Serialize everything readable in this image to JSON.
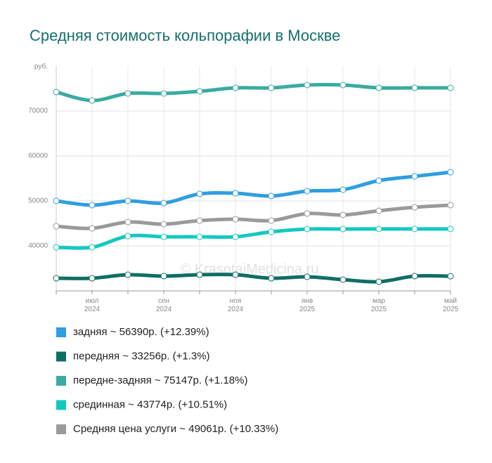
{
  "chart_data": {
    "type": "line",
    "title": "Средняя стоимость кольпорафии в Москве",
    "y_label": "руб.",
    "watermark": "© KrasotaiMedicina.ru",
    "categories": [
      null,
      "июл 2024",
      null,
      "сен 2024",
      null,
      "ноя 2024",
      null,
      "янв 2025",
      null,
      "мар 2025",
      null,
      "май 2025"
    ],
    "ylim": [
      30000,
      80000
    ],
    "yticks": [
      40000,
      50000,
      60000,
      70000
    ],
    "grid": true,
    "series": [
      {
        "name": "задняя ~ 56390р. (+12.39%)",
        "color": "#2f9ee0",
        "values": [
          50000,
          49060,
          50000,
          49530,
          51560,
          51720,
          51090,
          52190,
          52500,
          54530,
          55470,
          56390
        ]
      },
      {
        "name": "передняя ~ 33256р. (+1.3%)",
        "color": "#0f6e64",
        "values": [
          32810,
          32810,
          33590,
          33280,
          33590,
          33590,
          32810,
          33130,
          32500,
          32030,
          33280,
          33256
        ]
      },
      {
        "name": "передне-задняя ~ 75147р. (+1.18%)",
        "color": "#3aaba0",
        "values": [
          74220,
          72340,
          73910,
          73910,
          74380,
          75150,
          75150,
          75780,
          75780,
          75150,
          75150,
          75147
        ]
      },
      {
        "name": "срединная ~ 43774р. (+10.51%)",
        "color": "#12c9bf",
        "values": [
          39690,
          39690,
          42190,
          42030,
          42030,
          42030,
          43130,
          43750,
          43750,
          43774,
          43774,
          43774
        ]
      },
      {
        "name": "Средняя цена услуги ~ 49061р. (+10.33%)",
        "color": "#9a9a9a",
        "values": [
          44380,
          43910,
          45310,
          44840,
          45630,
          45940,
          45630,
          47190,
          46880,
          47810,
          48590,
          49061
        ]
      }
    ]
  }
}
